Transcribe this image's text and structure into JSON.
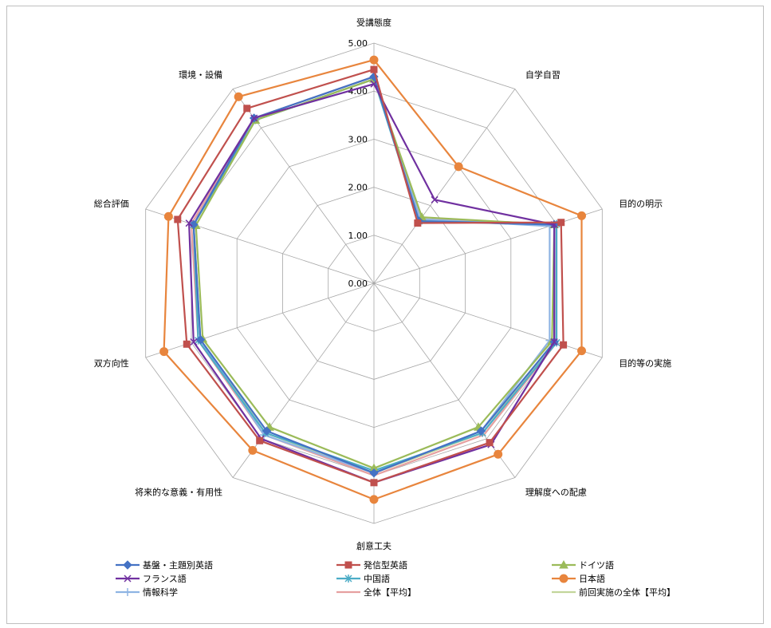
{
  "chart_data": {
    "type": "radar",
    "axes": [
      "受講態度",
      "自学自習",
      "目的の明示",
      "目的等の実施",
      "理解度への配慮",
      "創意工夫",
      "将来的な意義・有用性",
      "双方向性",
      "総合評価",
      "環境・設備"
    ],
    "rlim": [
      0,
      5
    ],
    "ticks": [
      "0.00",
      "1.00",
      "2.00",
      "3.00",
      "4.00",
      "5.00"
    ],
    "legend_position": "bottom",
    "series": [
      {
        "name": "基盤・主題別英語",
        "color": "#4472c4",
        "marker": "diamond",
        "values": [
          4.3,
          1.6,
          3.95,
          3.95,
          3.8,
          3.95,
          3.8,
          3.8,
          3.95,
          4.25
        ]
      },
      {
        "name": "発信型英語",
        "color": "#c0504d",
        "marker": "square",
        "values": [
          4.45,
          1.55,
          4.1,
          4.15,
          4.1,
          4.15,
          4.05,
          4.1,
          4.3,
          4.5
        ]
      },
      {
        "name": "ドイツ語",
        "color": "#9bbb59",
        "marker": "triangle",
        "values": [
          4.25,
          1.7,
          3.95,
          3.9,
          3.7,
          3.85,
          3.7,
          3.75,
          3.9,
          4.2
        ]
      },
      {
        "name": "フランス語",
        "color": "#7030a0",
        "marker": "x",
        "values": [
          4.15,
          2.15,
          3.95,
          3.95,
          4.15,
          4.15,
          4.0,
          3.95,
          4.05,
          4.25
        ]
      },
      {
        "name": "中国語",
        "color": "#4bacc6",
        "marker": "star",
        "values": [
          4.25,
          1.6,
          4.0,
          4.0,
          3.85,
          3.9,
          3.85,
          3.85,
          3.95,
          4.2
        ]
      },
      {
        "name": "日本語",
        "color": "#e8853d",
        "marker": "circle",
        "values": [
          4.65,
          3.0,
          4.55,
          4.55,
          4.4,
          4.5,
          4.3,
          4.6,
          4.5,
          4.8
        ]
      },
      {
        "name": "情報科学",
        "color": "#8eb4e3",
        "marker": "plus",
        "values": [
          4.25,
          1.65,
          3.85,
          3.85,
          3.8,
          3.95,
          3.9,
          3.8,
          3.95,
          4.2
        ]
      },
      {
        "name": "全体【平均】",
        "color": "#e6a0a0",
        "marker": "none",
        "values": [
          4.3,
          1.65,
          4.0,
          4.0,
          3.9,
          4.0,
          3.9,
          3.85,
          4.0,
          4.25
        ]
      },
      {
        "name": "前回実施の全体【平均】",
        "color": "#c3d69b",
        "marker": "none",
        "values": [
          4.25,
          1.65,
          3.95,
          3.95,
          3.85,
          3.95,
          3.85,
          3.8,
          3.95,
          4.2
        ]
      }
    ]
  }
}
